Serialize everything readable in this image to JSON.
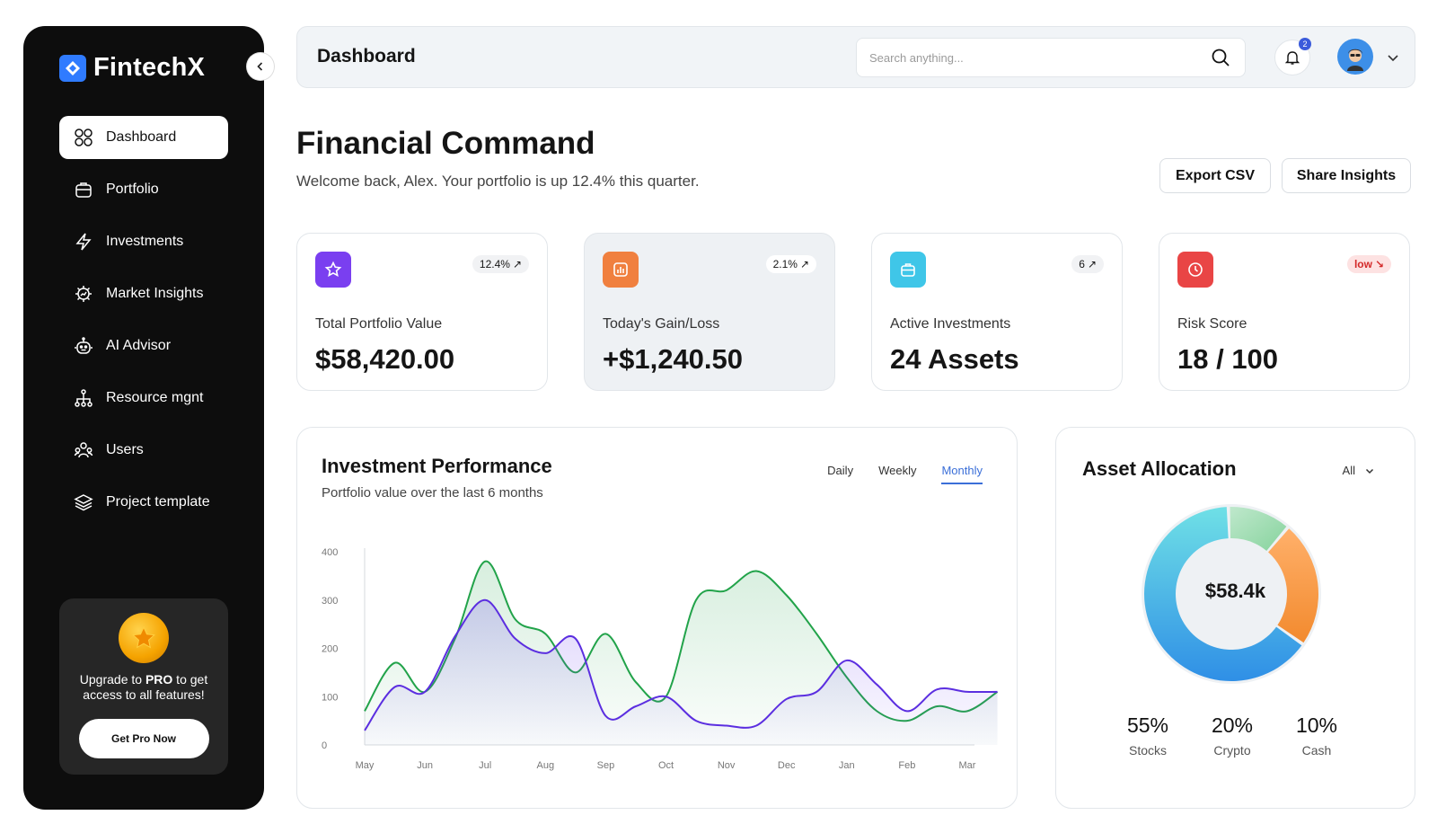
{
  "brand": {
    "name": "FintechX"
  },
  "sidebar": {
    "items": [
      {
        "label": "Dashboard",
        "icon": "grid-icon"
      },
      {
        "label": "Portfolio",
        "icon": "briefcase-icon"
      },
      {
        "label": "Investments",
        "icon": "lightning-icon"
      },
      {
        "label": "Market Insights",
        "icon": "gear-chart-icon"
      },
      {
        "label": "AI Advisor",
        "icon": "robot-icon"
      },
      {
        "label": "Resource mgnt",
        "icon": "hierarchy-icon"
      },
      {
        "label": "Users",
        "icon": "users-icon"
      },
      {
        "label": "Project template",
        "icon": "layers-icon"
      }
    ],
    "active": "Dashboard",
    "promo": {
      "text_pre": "Upgrade to ",
      "text_bold": "PRO",
      "text_post": " to get access to all features!",
      "button": "Get Pro Now"
    }
  },
  "header": {
    "title": "Dashboard",
    "search_placeholder": "Search anything...",
    "notification_count": "2"
  },
  "page": {
    "title": "Financial Command",
    "subtitle": "Welcome back, Alex. Your portfolio is up 12.4% this quarter.",
    "export_label": "Export CSV",
    "share_label": "Share Insights"
  },
  "stats": [
    {
      "label": "Total Portfolio Value",
      "value": "$58,420.00",
      "badge": "12.4%",
      "icon": "star-icon",
      "color": "#7a3ff0"
    },
    {
      "label": "Today's Gain/Loss",
      "value": "+$1,240.50",
      "badge": "2.1%",
      "icon": "bar-chart-icon",
      "color": "#f0803f"
    },
    {
      "label": "Active Investments",
      "value": "24 Assets",
      "badge": "6",
      "icon": "briefcase-icon",
      "color": "#3fc6e8"
    },
    {
      "label": "Risk Score",
      "value": "18 / 100",
      "badge": "low",
      "icon": "clock-icon",
      "color": "#e94545"
    }
  ],
  "performance": {
    "title": "Investment Performance",
    "subtitle": "Portfolio value over the last 6 months",
    "tabs": [
      "Daily",
      "Weekly",
      "Monthly"
    ],
    "active_tab": "Monthly"
  },
  "chart_data": {
    "type": "area",
    "categories": [
      "May",
      "Jun",
      "Jul",
      "Aug",
      "Sep",
      "Oct",
      "Nov",
      "Dec",
      "Jan",
      "Feb",
      "Mar"
    ],
    "x": [
      0,
      0.5,
      1,
      1.5,
      2,
      2.5,
      3,
      3.5,
      4,
      4.5,
      5,
      5.5,
      6,
      6.5,
      7,
      7.5,
      8,
      8.5,
      9,
      9.5,
      10,
      10.5
    ],
    "series": [
      {
        "color": "#22a34a",
        "values": [
          70,
          170,
          110,
          220,
          380,
          260,
          230,
          150,
          230,
          130,
          100,
          300,
          320,
          360,
          310,
          230,
          140,
          70,
          50,
          80,
          70,
          110
        ]
      },
      {
        "color": "#5b2ee0",
        "values": [
          30,
          120,
          110,
          225,
          300,
          220,
          190,
          220,
          60,
          80,
          100,
          50,
          40,
          40,
          95,
          110,
          175,
          125,
          70,
          115,
          110,
          110
        ]
      }
    ],
    "ylim": [
      0,
      400
    ],
    "yticks": [
      0,
      100,
      200,
      300,
      400
    ],
    "grid": false
  },
  "allocation": {
    "title": "Asset Allocation",
    "filter": "All",
    "center": "$58.4k",
    "segments": [
      {
        "name": "Stocks",
        "pct": "55%",
        "value": 55,
        "color": "#3aa8e6"
      },
      {
        "name": "Crypto",
        "pct": "20%",
        "value": 20,
        "color": "#f7a24b"
      },
      {
        "name": "Cash",
        "pct": "10%",
        "value": 10,
        "color": "#a8dfb8"
      }
    ]
  }
}
